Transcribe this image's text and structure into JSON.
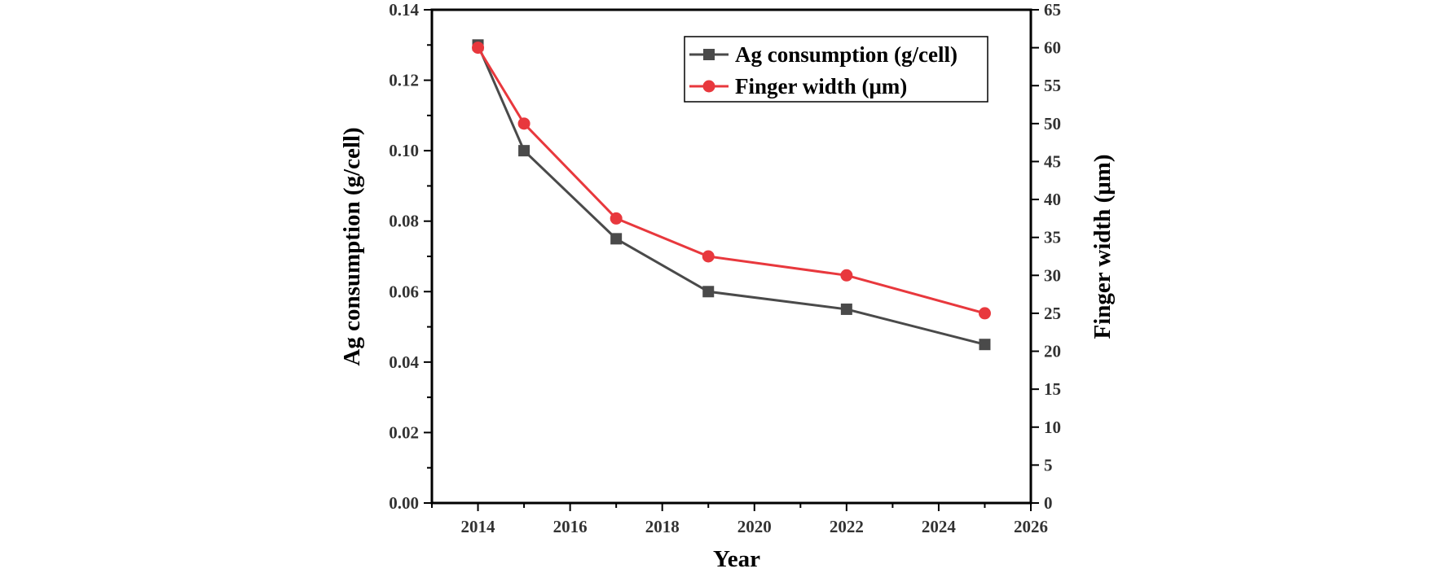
{
  "chart_data": {
    "type": "line",
    "xlabel": "Year",
    "ylabel_left": "Ag consumption (g/cell)",
    "ylabel_right": "Finger width (μm)",
    "xlim": [
      2013,
      2026
    ],
    "ylim_left": [
      0,
      0.14
    ],
    "ylim_right": [
      0,
      65
    ],
    "x_ticks": [
      2014,
      2016,
      2018,
      2020,
      2022,
      2024,
      2026
    ],
    "y_left_ticks": [
      "0.00",
      "0.02",
      "0.04",
      "0.06",
      "0.08",
      "0.10",
      "0.12",
      "0.14"
    ],
    "y_right_ticks": [
      "0",
      "5",
      "10",
      "15",
      "20",
      "25",
      "30",
      "35",
      "40",
      "45",
      "50",
      "55",
      "60",
      "65"
    ],
    "grid": false,
    "legend_position": "top-right",
    "series": [
      {
        "name": "Ag consumption (g/cell)",
        "axis": "left",
        "marker": "square",
        "color": "#4a4a4a",
        "x": [
          2014,
          2015,
          2017,
          2019,
          2022,
          2025
        ],
        "y": [
          0.13,
          0.1,
          0.075,
          0.06,
          0.055,
          0.045
        ]
      },
      {
        "name": "Finger width (μm)",
        "axis": "right",
        "marker": "circle",
        "color": "#e8383d",
        "x": [
          2014,
          2015,
          2017,
          2019,
          2022,
          2025
        ],
        "y": [
          60,
          50,
          37.5,
          32.5,
          30,
          25
        ]
      }
    ]
  }
}
